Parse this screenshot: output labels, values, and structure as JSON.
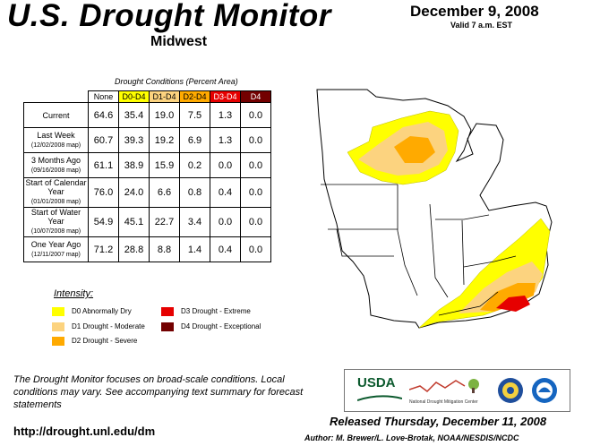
{
  "header": {
    "title": "U.S. Drought Monitor",
    "region": "Midwest",
    "date": "December 9, 2008",
    "valid": "Valid 7 a.m. EST"
  },
  "table": {
    "caption": "Drought Conditions (Percent Area)",
    "columns": [
      "None",
      "D0-D4",
      "D1-D4",
      "D2-D4",
      "D3-D4",
      "D4"
    ],
    "rows": [
      {
        "label": "Current",
        "sub": "",
        "values": [
          "64.6",
          "35.4",
          "19.0",
          "7.5",
          "1.3",
          "0.0"
        ]
      },
      {
        "label": "Last Week",
        "sub": "(12/02/2008 map)",
        "values": [
          "60.7",
          "39.3",
          "19.2",
          "6.9",
          "1.3",
          "0.0"
        ]
      },
      {
        "label": "3 Months Ago",
        "sub": "(09/16/2008 map)",
        "values": [
          "61.1",
          "38.9",
          "15.9",
          "0.2",
          "0.0",
          "0.0"
        ]
      },
      {
        "label": "Start of Calendar Year",
        "sub": "(01/01/2008 map)",
        "values": [
          "76.0",
          "24.0",
          "6.6",
          "0.8",
          "0.4",
          "0.0"
        ]
      },
      {
        "label": "Start of Water Year",
        "sub": "(10/07/2008 map)",
        "values": [
          "54.9",
          "45.1",
          "22.7",
          "3.4",
          "0.0",
          "0.0"
        ]
      },
      {
        "label": "One Year Ago",
        "sub": "(12/11/2007 map)",
        "values": [
          "71.2",
          "28.8",
          "8.8",
          "1.4",
          "0.4",
          "0.0"
        ]
      }
    ]
  },
  "legend": {
    "title": "Intensity:",
    "items": [
      {
        "label": "D0 Abnormally Dry",
        "color": "#ffff00"
      },
      {
        "label": "D1 Drought - Moderate",
        "color": "#fcd37f"
      },
      {
        "label": "D2 Drought - Severe",
        "color": "#ffaa00"
      },
      {
        "label": "D3 Drought - Extreme",
        "color": "#e60000"
      },
      {
        "label": "D4 Drought - Exceptional",
        "color": "#730000"
      }
    ]
  },
  "footer": {
    "note": "The Drought Monitor focuses on broad-scale conditions. Local conditions may vary. See accompanying text summary for forecast statements",
    "url": "http://drought.unl.edu/dm",
    "released": "Released Thursday, December 11, 2008",
    "author": "Author: M. Brewer/L. Love-Brotak, NOAA/NESDIS/NCDC"
  },
  "logos": {
    "usda": "USDA",
    "ndmc": "National Drought Mitigation Center"
  }
}
